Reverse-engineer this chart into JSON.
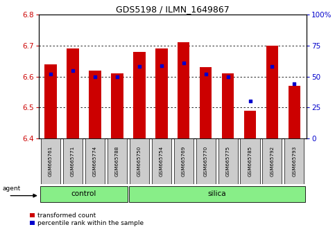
{
  "title": "GDS5198 / ILMN_1649867",
  "samples": [
    "GSM665761",
    "GSM665771",
    "GSM665774",
    "GSM665788",
    "GSM665750",
    "GSM665754",
    "GSM665769",
    "GSM665770",
    "GSM665775",
    "GSM665785",
    "GSM665792",
    "GSM665793"
  ],
  "red_values": [
    6.64,
    6.69,
    6.62,
    6.61,
    6.68,
    6.69,
    6.71,
    6.63,
    6.61,
    6.49,
    6.7,
    6.57
  ],
  "blue_pct": [
    52,
    55,
    50,
    50,
    58,
    59,
    61,
    52,
    50,
    30,
    58,
    44
  ],
  "ylim_left": [
    6.4,
    6.8
  ],
  "ylim_right": [
    0,
    100
  ],
  "yticks_left": [
    6.4,
    6.5,
    6.6,
    6.7,
    6.8
  ],
  "yticks_right": [
    0,
    25,
    50,
    75,
    100
  ],
  "left_color": "#cc0000",
  "right_color": "#0000cc",
  "bar_bottom": 6.4,
  "bar_width": 0.55,
  "group_color": "#88ee88",
  "legend_red": "transformed count",
  "legend_blue": "percentile rank within the sample",
  "control_range": [
    0,
    3
  ],
  "silica_range": [
    4,
    11
  ]
}
